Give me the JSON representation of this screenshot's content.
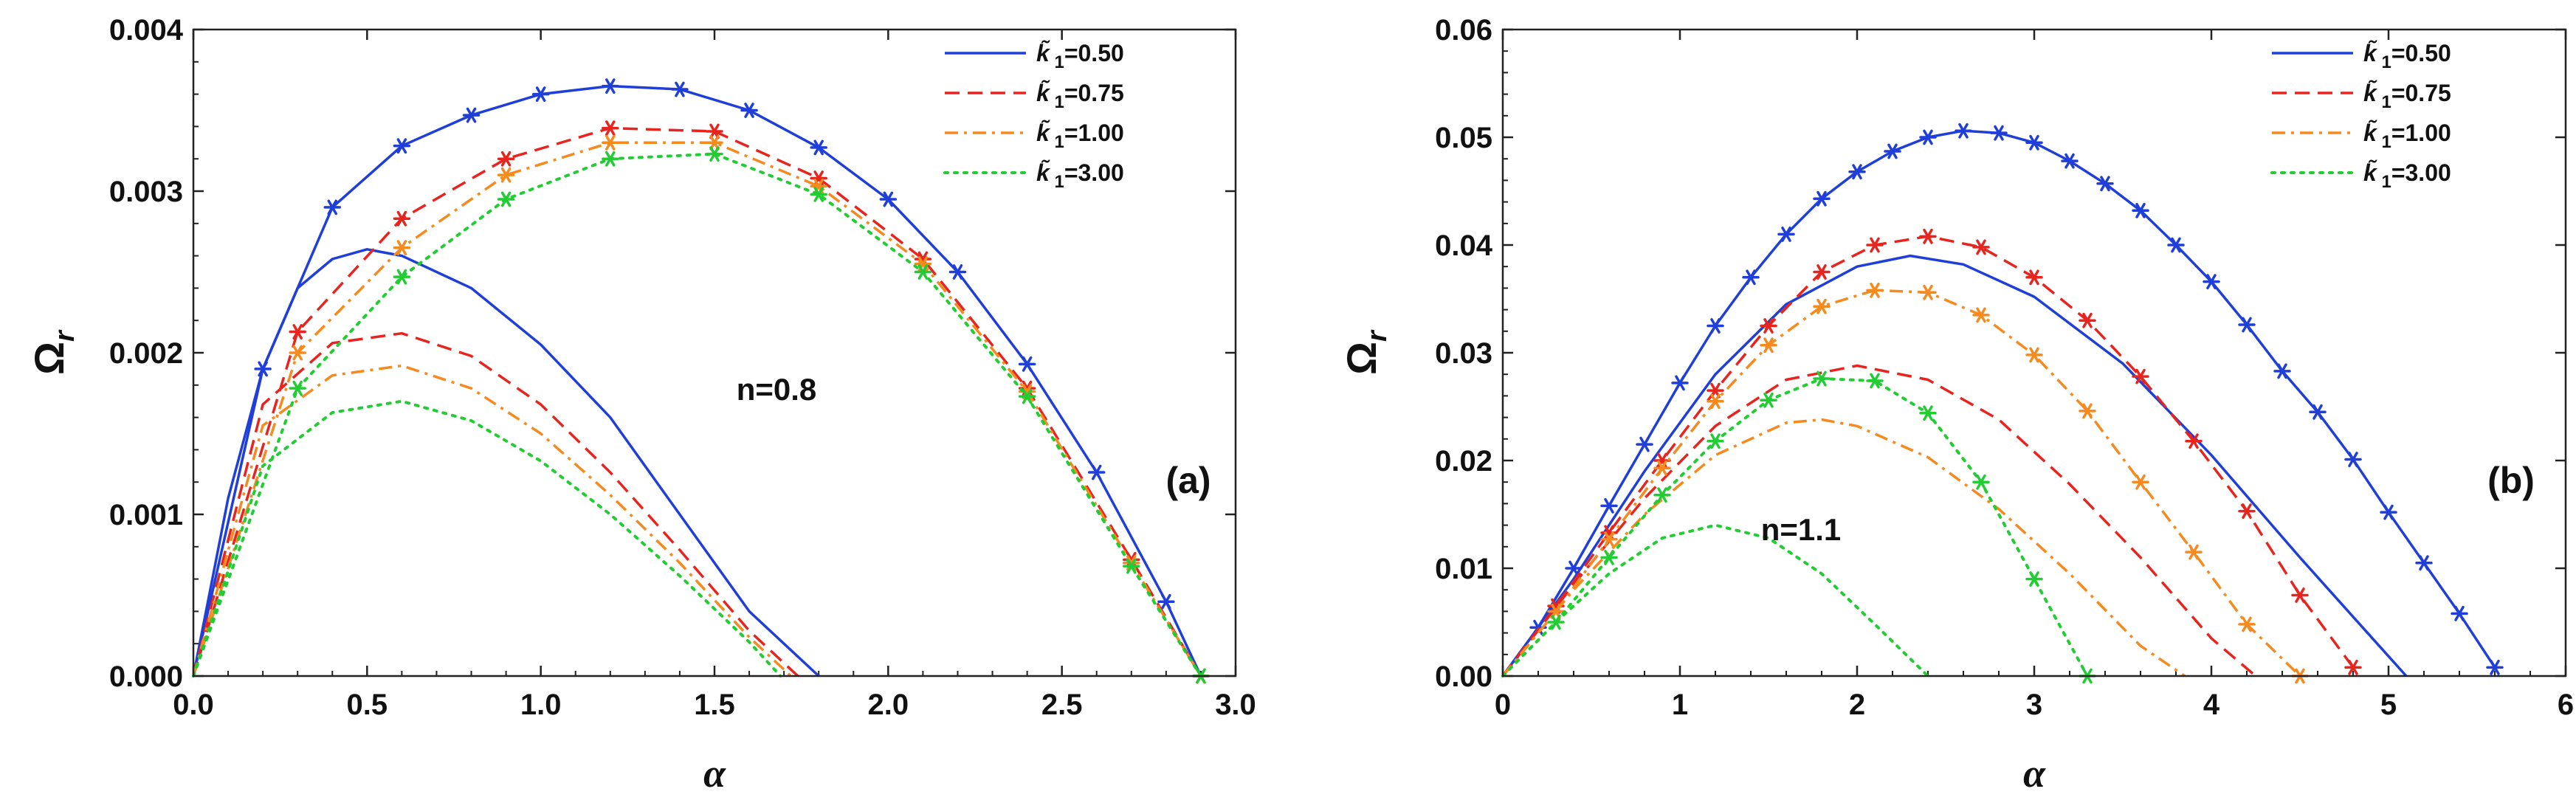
{
  "chart_data": [
    {
      "type": "line",
      "panel_label": "(a)",
      "annotation": "n=0.8",
      "xlabel": "α",
      "ylabel": "Ω",
      "ylabel_sub": "r",
      "xlim": [
        0,
        3.0
      ],
      "ylim": [
        0,
        0.004
      ],
      "xticks": [
        "0.0",
        "0.5",
        "1.0",
        "1.5",
        "2.0",
        "2.5",
        "3.0"
      ],
      "yticks": [
        "0.000",
        "0.001",
        "0.002",
        "0.003",
        "0.004"
      ],
      "legend": {
        "symbol": "k̃",
        "sub": "1",
        "entries": [
          "=0.50",
          "=0.75",
          "=1.00",
          "=3.00"
        ]
      },
      "series": [
        {
          "name": "k1=0.50",
          "color": "#1f3fd8",
          "style": "solid",
          "upper": {
            "x": [
              0,
              0.2,
              0.4,
              0.6,
              0.8,
              1.0,
              1.2,
              1.4,
              1.6,
              1.8,
              2.0,
              2.2,
              2.4,
              2.6,
              2.8,
              2.9
            ],
            "y": [
              0,
              0.0019,
              0.0029,
              0.00328,
              0.00347,
              0.0036,
              0.00365,
              0.00363,
              0.0035,
              0.00327,
              0.00295,
              0.0025,
              0.00193,
              0.00126,
              0.00046,
              0
            ]
          },
          "lower": {
            "x": [
              0,
              0.1,
              0.2,
              0.3,
              0.4,
              0.5,
              0.6,
              0.8,
              1.0,
              1.2,
              1.4,
              1.6,
              1.8
            ],
            "y": [
              0,
              0.0011,
              0.0019,
              0.0024,
              0.00258,
              0.00264,
              0.0026,
              0.0024,
              0.00205,
              0.0016,
              0.001,
              0.0004,
              0
            ]
          }
        },
        {
          "name": "k1=0.75",
          "color": "#e8241f",
          "style": "dashed",
          "upper": {
            "x": [
              0,
              0.3,
              0.6,
              0.9,
              1.2,
              1.5,
              1.8,
              2.1,
              2.4,
              2.7,
              2.9
            ],
            "y": [
              0,
              0.00213,
              0.00283,
              0.0032,
              0.00339,
              0.00337,
              0.00308,
              0.00258,
              0.00178,
              0.00072,
              0
            ]
          },
          "lower": {
            "x": [
              0,
              0.2,
              0.4,
              0.6,
              0.8,
              1.0,
              1.2,
              1.4,
              1.6,
              1.74
            ],
            "y": [
              0,
              0.00168,
              0.00206,
              0.00212,
              0.00198,
              0.00168,
              0.00126,
              0.00078,
              0.00028,
              0
            ]
          }
        },
        {
          "name": "k1=1.00",
          "color": "#f58a1f",
          "style": "dashdot",
          "upper": {
            "x": [
              0,
              0.3,
              0.6,
              0.9,
              1.2,
              1.5,
              1.8,
              2.1,
              2.4,
              2.7,
              2.9
            ],
            "y": [
              0,
              0.002,
              0.00265,
              0.0031,
              0.0033,
              0.0033,
              0.00303,
              0.00255,
              0.00176,
              0.0007,
              0
            ]
          },
          "lower": {
            "x": [
              0,
              0.2,
              0.4,
              0.6,
              0.8,
              1.0,
              1.2,
              1.4,
              1.6,
              1.72
            ],
            "y": [
              0,
              0.00155,
              0.00186,
              0.00192,
              0.00178,
              0.0015,
              0.00112,
              0.0007,
              0.00024,
              0
            ]
          }
        },
        {
          "name": "k1=3.00",
          "color": "#22cc33",
          "style": "dotted",
          "upper": {
            "x": [
              0,
              0.3,
              0.6,
              0.9,
              1.2,
              1.5,
              1.8,
              2.1,
              2.4,
              2.7,
              2.9
            ],
            "y": [
              0,
              0.00178,
              0.00247,
              0.00295,
              0.0032,
              0.00323,
              0.00298,
              0.0025,
              0.00173,
              0.00068,
              0
            ]
          },
          "lower": {
            "x": [
              0,
              0.2,
              0.4,
              0.6,
              0.8,
              1.0,
              1.2,
              1.4,
              1.6,
              1.69
            ],
            "y": [
              0,
              0.0013,
              0.00163,
              0.0017,
              0.00158,
              0.00133,
              0.001,
              0.00062,
              0.00021,
              0
            ]
          }
        }
      ]
    },
    {
      "type": "line",
      "panel_label": "(b)",
      "annotation": "n=1.1",
      "xlabel": "α",
      "ylabel": "Ω",
      "ylabel_sub": "r",
      "xlim": [
        0,
        6
      ],
      "ylim": [
        0,
        0.06
      ],
      "xticks": [
        "0",
        "1",
        "2",
        "3",
        "4",
        "5",
        "6"
      ],
      "yticks": [
        "0.00",
        "0.01",
        "0.02",
        "0.03",
        "0.04",
        "0.05",
        "0.06"
      ],
      "legend": {
        "symbol": "k̃",
        "sub": "1",
        "entries": [
          "=0.50",
          "=0.75",
          "=1.00",
          "=3.00"
        ]
      },
      "series": [
        {
          "name": "k1=0.50",
          "color": "#1f3fd8",
          "style": "solid",
          "upper": {
            "x": [
              0,
              0.2,
              0.4,
              0.6,
              0.8,
              1.0,
              1.2,
              1.4,
              1.6,
              1.8,
              2.0,
              2.2,
              2.4,
              2.6,
              2.8,
              3.0,
              3.2,
              3.4,
              3.6,
              3.8,
              4.0,
              4.2,
              4.4,
              4.6,
              4.8,
              5.0,
              5.2,
              5.4,
              5.6
            ],
            "y": [
              0,
              0.0045,
              0.01,
              0.0158,
              0.0215,
              0.0272,
              0.0325,
              0.037,
              0.041,
              0.0443,
              0.0468,
              0.0487,
              0.05,
              0.0506,
              0.0504,
              0.0495,
              0.0478,
              0.0457,
              0.0432,
              0.04,
              0.0366,
              0.0326,
              0.0283,
              0.0245,
              0.0201,
              0.0152,
              0.0105,
              0.0058,
              0.0008
            ]
          },
          "lower": {
            "x": [
              0,
              0.4,
              0.8,
              1.2,
              1.6,
              2.0,
              2.3,
              2.6,
              3.0,
              3.5,
              4.0,
              4.5,
              5.1
            ],
            "y": [
              0,
              0.009,
              0.019,
              0.028,
              0.0345,
              0.038,
              0.039,
              0.0382,
              0.0352,
              0.029,
              0.0205,
              0.011,
              0
            ]
          }
        },
        {
          "name": "k1=0.75",
          "color": "#e8241f",
          "style": "dashed",
          "upper": {
            "x": [
              0,
              0.3,
              0.6,
              0.9,
              1.2,
              1.5,
              1.8,
              2.1,
              2.4,
              2.7,
              3.0,
              3.3,
              3.6,
              3.9,
              4.2,
              4.5,
              4.8
            ],
            "y": [
              0,
              0.0065,
              0.0133,
              0.02,
              0.0265,
              0.0325,
              0.0375,
              0.04,
              0.0408,
              0.0398,
              0.037,
              0.033,
              0.0278,
              0.0218,
              0.0153,
              0.0075,
              0.0008
            ]
          },
          "lower": {
            "x": [
              0,
              0.4,
              0.8,
              1.2,
              1.6,
              2.0,
              2.4,
              2.8,
              3.2,
              3.6,
              4.0,
              4.25
            ],
            "y": [
              0,
              0.0085,
              0.0165,
              0.0232,
              0.0275,
              0.0288,
              0.0275,
              0.0238,
              0.0178,
              0.011,
              0.0035,
              0
            ]
          }
        },
        {
          "name": "k1=1.00",
          "color": "#f58a1f",
          "style": "dashdot",
          "upper": {
            "x": [
              0,
              0.3,
              0.6,
              0.9,
              1.2,
              1.5,
              1.8,
              2.1,
              2.4,
              2.7,
              3.0,
              3.3,
              3.6,
              3.9,
              4.2,
              4.5
            ],
            "y": [
              0,
              0.006,
              0.0127,
              0.0193,
              0.0255,
              0.0307,
              0.0343,
              0.0358,
              0.0356,
              0.0335,
              0.0298,
              0.0246,
              0.018,
              0.0115,
              0.0048,
              0
            ]
          },
          "lower": {
            "x": [
              0,
              0.4,
              0.8,
              1.2,
              1.6,
              1.8,
              2.0,
              2.4,
              2.8,
              3.2,
              3.6,
              3.85
            ],
            "y": [
              0,
              0.008,
              0.015,
              0.0205,
              0.0235,
              0.0238,
              0.0232,
              0.0203,
              0.0155,
              0.0095,
              0.0028,
              0
            ]
          }
        },
        {
          "name": "k1=3.00",
          "color": "#22cc33",
          "style": "dotted",
          "upper": {
            "x": [
              0,
              0.3,
              0.6,
              0.9,
              1.2,
              1.5,
              1.8,
              2.1,
              2.4,
              2.7,
              3.0,
              3.3
            ],
            "y": [
              0,
              0.005,
              0.011,
              0.0168,
              0.0218,
              0.0256,
              0.0276,
              0.0274,
              0.0244,
              0.018,
              0.009,
              0
            ]
          },
          "lower": {
            "x": [
              0,
              0.3,
              0.6,
              0.9,
              1.2,
              1.5,
              1.8,
              2.1,
              2.4
            ],
            "y": [
              0,
              0.005,
              0.0095,
              0.0128,
              0.014,
              0.0128,
              0.0095,
              0.0048,
              0
            ]
          }
        }
      ]
    }
  ]
}
